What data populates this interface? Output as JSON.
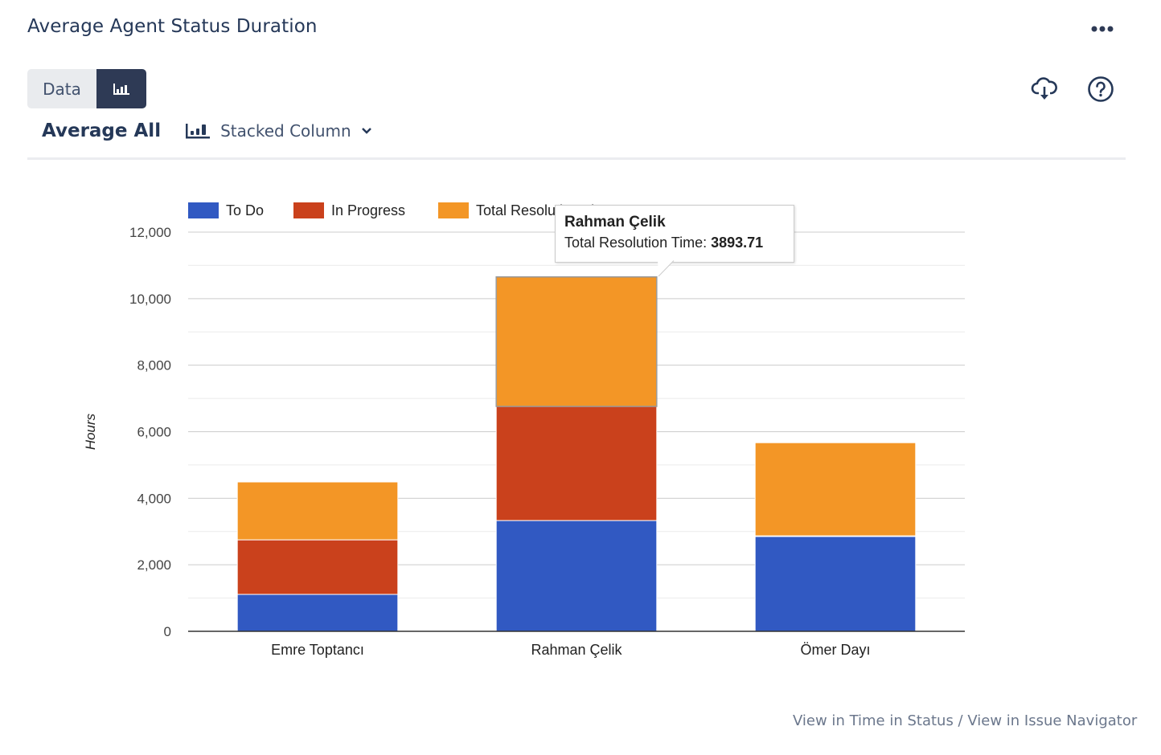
{
  "header": {
    "title": "Average Agent Status Duration",
    "more_icon": "more-horizontal-icon"
  },
  "toolbar": {
    "data_tab_label": "Data",
    "chart_tab_icon": "bar-chart-icon",
    "download_icon": "cloud-download-icon",
    "help_icon": "help-circle-icon",
    "aggregation_label": "Average All",
    "chart_type_label": "Stacked Column",
    "chart_type_icon": "bar-chart-icon"
  },
  "colors": {
    "to_do": "#3159C2",
    "in_progress": "#CA411C",
    "total_resolution_time": "#F39626",
    "toggle_active": "#2E3A55"
  },
  "tooltip": {
    "name": "Rahman Çelik",
    "series_label": "Total Resolution Time:",
    "value": "3893.71"
  },
  "footer": {
    "link1": "View in Time in Status",
    "separator": " / ",
    "link2": "View in Issue Navigator"
  },
  "chart_data": {
    "type": "bar",
    "stacked": true,
    "title": "",
    "xlabel": "",
    "ylabel": "Hours",
    "ylim": [
      0,
      12000
    ],
    "yticks": [
      0,
      2000,
      4000,
      6000,
      8000,
      10000,
      12000
    ],
    "ytick_labels": [
      "0",
      "2,000",
      "4,000",
      "6,000",
      "8,000",
      "10,000",
      "12,000"
    ],
    "grid": true,
    "legend_position": "top",
    "categories": [
      "Emre Toptancı",
      "Rahman Çelik",
      "Ömer Dayı"
    ],
    "series": [
      {
        "name": "To Do",
        "color": "#3159C2",
        "values": [
          1110,
          3330,
          2850
        ]
      },
      {
        "name": "In Progress",
        "color": "#CA411C",
        "values": [
          1640,
          3430,
          20
        ]
      },
      {
        "name": "Total Resolution Time",
        "color": "#F39626",
        "values": [
          1740,
          3893.71,
          2800
        ]
      }
    ]
  }
}
